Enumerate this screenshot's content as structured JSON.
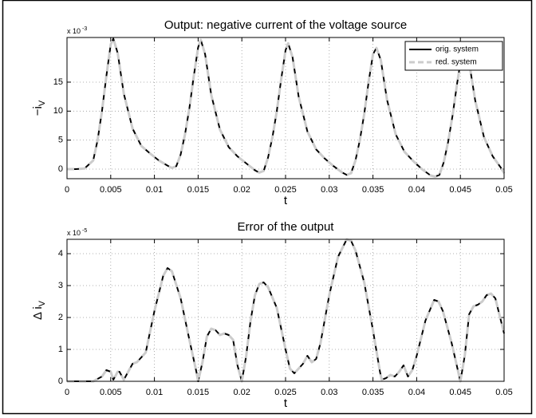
{
  "chart_data": [
    {
      "type": "line",
      "title": "Output: negative current of the voltage source",
      "xlabel": "t",
      "ylabel": "−i",
      "ylabel_sub": "V",
      "y_multiplier": "x 10",
      "y_exponent": "-3",
      "x": [
        0,
        0.001,
        0.002,
        0.003,
        0.0035,
        0.004,
        0.0045,
        0.005,
        0.0053,
        0.0058,
        0.0065,
        0.0075,
        0.0085,
        0.0095,
        0.0105,
        0.0115,
        0.012,
        0.0125,
        0.013,
        0.0135,
        0.014,
        0.0145,
        0.015,
        0.0153,
        0.0158,
        0.0165,
        0.0175,
        0.0185,
        0.0195,
        0.0205,
        0.0215,
        0.022,
        0.0225,
        0.023,
        0.0235,
        0.024,
        0.0245,
        0.025,
        0.0253,
        0.0258,
        0.0265,
        0.0275,
        0.0285,
        0.0295,
        0.0305,
        0.0315,
        0.032,
        0.0325,
        0.033,
        0.0335,
        0.034,
        0.0345,
        0.035,
        0.0354,
        0.0359,
        0.0366,
        0.0376,
        0.0386,
        0.0396,
        0.0406,
        0.0416,
        0.0421,
        0.0426,
        0.0431,
        0.0436,
        0.0441,
        0.0446,
        0.0451,
        0.0455,
        0.046,
        0.0467,
        0.0477,
        0.0487,
        0.0497,
        0.05
      ],
      "series": [
        {
          "name": "orig. system",
          "color": "#000000",
          "dashed": false,
          "values": [
            0,
            0,
            0.1,
            1.5,
            5,
            10,
            16,
            21.5,
            22.5,
            20,
            13,
            7,
            4,
            2.7,
            1.5,
            0.6,
            0.2,
            0.5,
            2.5,
            6,
            10.5,
            16,
            21,
            22.3,
            19.8,
            12.8,
            6.8,
            3.8,
            2.2,
            1,
            -0.2,
            -0.6,
            -0.3,
            2,
            5.5,
            10,
            15.5,
            20.5,
            21.7,
            19.3,
            12.5,
            6.5,
            3.4,
            1.8,
            0.5,
            -0.6,
            -1,
            -0.7,
            1.5,
            5,
            9.5,
            15,
            19.8,
            20.9,
            18.8,
            12,
            6,
            3,
            1.4,
            0,
            -1.1,
            -1.3,
            -1,
            1.2,
            4.7,
            9.2,
            14.5,
            19.3,
            20.5,
            18.4,
            11.8,
            5.5,
            2.2,
            0.1,
            -0.7
          ]
        },
        {
          "name": "red. system",
          "color": "#cccccc",
          "dashed": true,
          "values": [
            0,
            0,
            0.1,
            1.5,
            5,
            10,
            16,
            21.5,
            22.5,
            20,
            13,
            7,
            4,
            2.7,
            1.5,
            0.6,
            0.2,
            0.5,
            2.5,
            6,
            10.5,
            16,
            21,
            22.3,
            19.8,
            12.8,
            6.8,
            3.8,
            2.2,
            1,
            -0.2,
            -0.6,
            -0.3,
            2,
            5.5,
            10,
            15.5,
            20.5,
            21.7,
            19.3,
            12.5,
            6.5,
            3.4,
            1.8,
            0.5,
            -0.6,
            -1,
            -0.7,
            1.5,
            5,
            9.5,
            15,
            19.8,
            20.9,
            18.8,
            12,
            6,
            3,
            1.4,
            0,
            -1.1,
            -1.3,
            -1,
            1.2,
            4.7,
            9.2,
            14.5,
            19.3,
            20.5,
            18.4,
            11.8,
            5.5,
            2.2,
            0.1,
            -0.7
          ]
        }
      ],
      "xlim": [
        0,
        0.05
      ],
      "xticks": [
        0,
        0.005,
        0.01,
        0.015,
        0.02,
        0.025,
        0.03,
        0.035,
        0.04,
        0.045,
        0.05
      ],
      "ylim": [
        -1.65,
        22.7
      ],
      "yticks": [
        0,
        5,
        10,
        15
      ],
      "grid": true,
      "legend": "upper right"
    },
    {
      "type": "line",
      "title": "Error of the output",
      "xlabel": "t",
      "ylabel": "Δ i",
      "ylabel_sub": "V",
      "y_multiplier": "x 10",
      "y_exponent": "-5",
      "x": [
        0,
        0.003,
        0.004,
        0.0045,
        0.005,
        0.0053,
        0.0058,
        0.006,
        0.0065,
        0.007,
        0.0075,
        0.008,
        0.009,
        0.01,
        0.011,
        0.0115,
        0.012,
        0.013,
        0.014,
        0.0148,
        0.015,
        0.0155,
        0.016,
        0.0165,
        0.017,
        0.0175,
        0.018,
        0.0185,
        0.019,
        0.0195,
        0.02,
        0.0205,
        0.021,
        0.0215,
        0.022,
        0.0225,
        0.023,
        0.024,
        0.025,
        0.0255,
        0.026,
        0.0265,
        0.027,
        0.0275,
        0.028,
        0.0285,
        0.029,
        0.03,
        0.031,
        0.032,
        0.0325,
        0.033,
        0.034,
        0.035,
        0.0358,
        0.036,
        0.0365,
        0.037,
        0.0375,
        0.038,
        0.0385,
        0.039,
        0.0395,
        0.04,
        0.041,
        0.042,
        0.0425,
        0.043,
        0.044,
        0.045,
        0.0455,
        0.046,
        0.0465,
        0.047,
        0.0475,
        0.048,
        0.0485,
        0.049,
        0.05
      ],
      "series": [
        {
          "color": "#000000",
          "dashed": false,
          "values": [
            0,
            0,
            0.15,
            0.35,
            0.3,
            0.05,
            0.3,
            0.3,
            0.05,
            0.3,
            0.55,
            0.6,
            0.9,
            2.2,
            3.3,
            3.55,
            3.45,
            2.6,
            1.3,
            0.3,
            0,
            0.6,
            1.4,
            1.65,
            1.6,
            1.45,
            1.5,
            1.45,
            1.3,
            0.5,
            0,
            0.8,
            1.9,
            2.7,
            3.05,
            3.1,
            2.95,
            2.3,
            1,
            0.4,
            0.25,
            0.4,
            0.55,
            0.8,
            0.6,
            0.7,
            1.2,
            2.7,
            3.9,
            4.45,
            4.4,
            4.1,
            3.1,
            1.6,
            0.3,
            0.05,
            0.1,
            0.2,
            0.15,
            0.3,
            0.5,
            0.15,
            0.35,
            0.8,
            1.9,
            2.55,
            2.5,
            2.2,
            1.2,
            0,
            0.8,
            2.1,
            2.35,
            2.4,
            2.5,
            2.7,
            2.75,
            2.6,
            1.5
          ]
        },
        {
          "color": "#cccccc",
          "dashed": true,
          "values": [
            0,
            0,
            0.15,
            0.35,
            0.3,
            0.05,
            0.3,
            0.3,
            0.05,
            0.3,
            0.55,
            0.6,
            0.9,
            2.2,
            3.3,
            3.55,
            3.45,
            2.6,
            1.3,
            0.3,
            0,
            0.6,
            1.4,
            1.65,
            1.6,
            1.45,
            1.5,
            1.45,
            1.3,
            0.5,
            0,
            0.8,
            1.9,
            2.7,
            3.05,
            3.1,
            2.95,
            2.3,
            1,
            0.4,
            0.25,
            0.4,
            0.55,
            0.8,
            0.6,
            0.7,
            1.2,
            2.7,
            3.9,
            4.45,
            4.4,
            4.1,
            3.1,
            1.6,
            0.3,
            0.05,
            0.1,
            0.2,
            0.15,
            0.3,
            0.5,
            0.15,
            0.35,
            0.8,
            1.9,
            2.55,
            2.5,
            2.2,
            1.2,
            0,
            0.8,
            2.1,
            2.35,
            2.4,
            2.5,
            2.7,
            2.75,
            2.6,
            1.5
          ]
        }
      ],
      "xlim": [
        0,
        0.05
      ],
      "xticks": [
        0,
        0.005,
        0.01,
        0.015,
        0.02,
        0.025,
        0.03,
        0.035,
        0.04,
        0.045,
        0.05
      ],
      "ylim": [
        0,
        4.45
      ],
      "yticks": [
        0,
        1,
        2,
        3,
        4
      ],
      "grid": true
    }
  ]
}
